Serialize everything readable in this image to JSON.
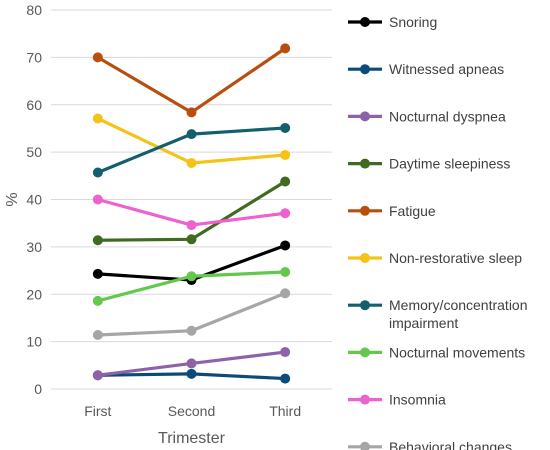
{
  "chart_data": {
    "type": "line",
    "categories": [
      "First",
      "Second",
      "Third"
    ],
    "xlabel": "Trimester",
    "ylabel": "%",
    "ylim": [
      0,
      80
    ],
    "yticks": [
      0,
      10,
      20,
      30,
      40,
      50,
      60,
      70,
      80
    ],
    "grid": true,
    "legend_position": "right",
    "series": [
      {
        "name": "Snoring",
        "color": "#000000",
        "values": [
          24.3,
          23.0,
          30.3
        ]
      },
      {
        "name": "Witnessed apneas",
        "color": "#0b4a7d",
        "values": [
          2.9,
          3.2,
          2.2
        ]
      },
      {
        "name": "Nocturnal dyspnea",
        "color": "#8e62a8",
        "values": [
          2.9,
          5.4,
          7.8
        ]
      },
      {
        "name": "Daytime sleepiness",
        "color": "#3e6b1f",
        "values": [
          31.4,
          31.6,
          43.8
        ]
      },
      {
        "name": "Fatigue",
        "color": "#b84f0e",
        "values": [
          70.0,
          58.4,
          71.9
        ]
      },
      {
        "name": "Non-restorative sleep",
        "color": "#f5c218",
        "values": [
          57.1,
          47.7,
          49.4
        ]
      },
      {
        "name": "Memory/concentration impairment",
        "color": "#135f6e",
        "values": [
          45.7,
          53.8,
          55.1
        ]
      },
      {
        "name": "Nocturnal movements",
        "color": "#63c94c",
        "values": [
          18.6,
          23.8,
          24.7
        ]
      },
      {
        "name": "Insomnia",
        "color": "#ee61d0",
        "values": [
          40.0,
          34.6,
          37.1
        ]
      },
      {
        "name": "Behavioral changes",
        "color": "#a6a6a6",
        "values": [
          11.4,
          12.3,
          20.2
        ]
      }
    ]
  }
}
